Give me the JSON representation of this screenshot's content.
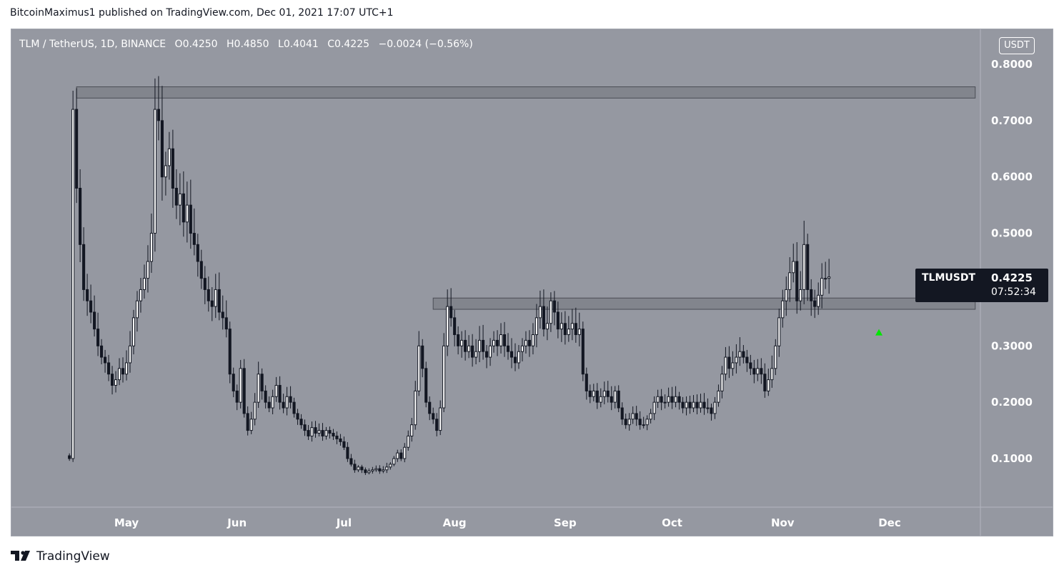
{
  "publisher": "BitcoinMaximus1 published on TradingView.com, Dec 01, 2021 17:07 UTC+1",
  "legend": {
    "symbol": "TLM / TetherUS, 1D, BINANCE",
    "open_label": "O",
    "open": "0.4250",
    "high_label": "H",
    "high": "0.4850",
    "low_label": "L",
    "low": "0.4041",
    "close_label": "C",
    "close": "0.4225",
    "change": "−0.0024 (−0.56%)"
  },
  "currency": "USDT",
  "badge": {
    "symbol": "TLMUSDT",
    "price": "0.4225",
    "countdown": "07:52:34"
  },
  "footer": {
    "brand": "TradingView",
    "logo_icon": "tradingview-logo-icon"
  },
  "colors": {
    "background": "#9598a1",
    "candle": "#131722",
    "up_body": "#ffffff",
    "marker": "#00e600",
    "zone": "#6b6e76"
  },
  "chart_data": {
    "type": "candlestick",
    "start": "2021-04-15",
    "y_axis": {
      "min": 0,
      "max": 0.85,
      "ticks": [
        "0.8000",
        "0.7000",
        "0.6000",
        "0.5000",
        "0.4000",
        "0.3000",
        "0.2000",
        "0.1000"
      ],
      "tick_values": [
        0.8,
        0.7,
        0.6,
        0.5,
        0.4,
        0.3,
        0.2,
        0.1
      ]
    },
    "x_axis": {
      "ticks": [
        "May",
        "Jun",
        "Jul",
        "Aug",
        "Sep",
        "Oct",
        "Nov",
        "Dec"
      ],
      "tick_dates": [
        "2021-05-01",
        "2021-06-01",
        "2021-07-01",
        "2021-08-01",
        "2021-09-01",
        "2021-10-01",
        "2021-11-01",
        "2021-12-01"
      ]
    },
    "zones": [
      {
        "from": "2021-04-17",
        "to": "2021-12-25",
        "top": 0.76,
        "bottom": 0.74
      },
      {
        "from": "2021-07-26",
        "to": "2021-12-25",
        "top": 0.385,
        "bottom": 0.365
      }
    ],
    "marker": {
      "date": "2021-11-28",
      "price": 0.325,
      "shape": "up-triangle"
    },
    "closes": [
      0.1,
      0.72,
      0.58,
      0.48,
      0.4,
      0.38,
      0.36,
      0.33,
      0.3,
      0.28,
      0.27,
      0.25,
      0.23,
      0.24,
      0.26,
      0.25,
      0.27,
      0.3,
      0.35,
      0.38,
      0.4,
      0.42,
      0.45,
      0.5,
      0.72,
      0.7,
      0.6,
      0.62,
      0.65,
      0.58,
      0.55,
      0.57,
      0.52,
      0.55,
      0.5,
      0.48,
      0.45,
      0.42,
      0.4,
      0.38,
      0.37,
      0.4,
      0.36,
      0.35,
      0.33,
      0.25,
      0.22,
      0.2,
      0.26,
      0.18,
      0.15,
      0.17,
      0.2,
      0.25,
      0.22,
      0.2,
      0.19,
      0.21,
      0.23,
      0.2,
      0.19,
      0.21,
      0.2,
      0.18,
      0.17,
      0.16,
      0.15,
      0.14,
      0.155,
      0.145,
      0.15,
      0.14,
      0.15,
      0.145,
      0.14,
      0.135,
      0.13,
      0.12,
      0.1,
      0.09,
      0.08,
      0.085,
      0.08,
      0.075,
      0.078,
      0.08,
      0.082,
      0.078,
      0.08,
      0.085,
      0.09,
      0.1,
      0.11,
      0.1,
      0.12,
      0.14,
      0.16,
      0.22,
      0.3,
      0.26,
      0.2,
      0.18,
      0.17,
      0.15,
      0.19,
      0.3,
      0.37,
      0.35,
      0.32,
      0.3,
      0.31,
      0.29,
      0.3,
      0.28,
      0.29,
      0.31,
      0.29,
      0.28,
      0.3,
      0.31,
      0.3,
      0.32,
      0.3,
      0.29,
      0.28,
      0.27,
      0.29,
      0.3,
      0.31,
      0.3,
      0.32,
      0.35,
      0.37,
      0.33,
      0.34,
      0.38,
      0.36,
      0.33,
      0.34,
      0.32,
      0.33,
      0.34,
      0.32,
      0.33,
      0.25,
      0.22,
      0.21,
      0.22,
      0.2,
      0.21,
      0.22,
      0.21,
      0.2,
      0.22,
      0.19,
      0.17,
      0.16,
      0.17,
      0.18,
      0.17,
      0.16,
      0.16,
      0.17,
      0.18,
      0.2,
      0.21,
      0.2,
      0.2,
      0.21,
      0.2,
      0.21,
      0.2,
      0.19,
      0.2,
      0.19,
      0.2,
      0.19,
      0.2,
      0.19,
      0.19,
      0.18,
      0.2,
      0.22,
      0.25,
      0.28,
      0.26,
      0.27,
      0.28,
      0.29,
      0.28,
      0.27,
      0.26,
      0.25,
      0.26,
      0.25,
      0.22,
      0.24,
      0.26,
      0.3,
      0.35,
      0.38,
      0.4,
      0.43,
      0.45,
      0.38,
      0.4,
      0.48,
      0.4,
      0.38,
      0.37,
      0.39,
      0.42,
      0.42,
      0.4225
    ]
  }
}
